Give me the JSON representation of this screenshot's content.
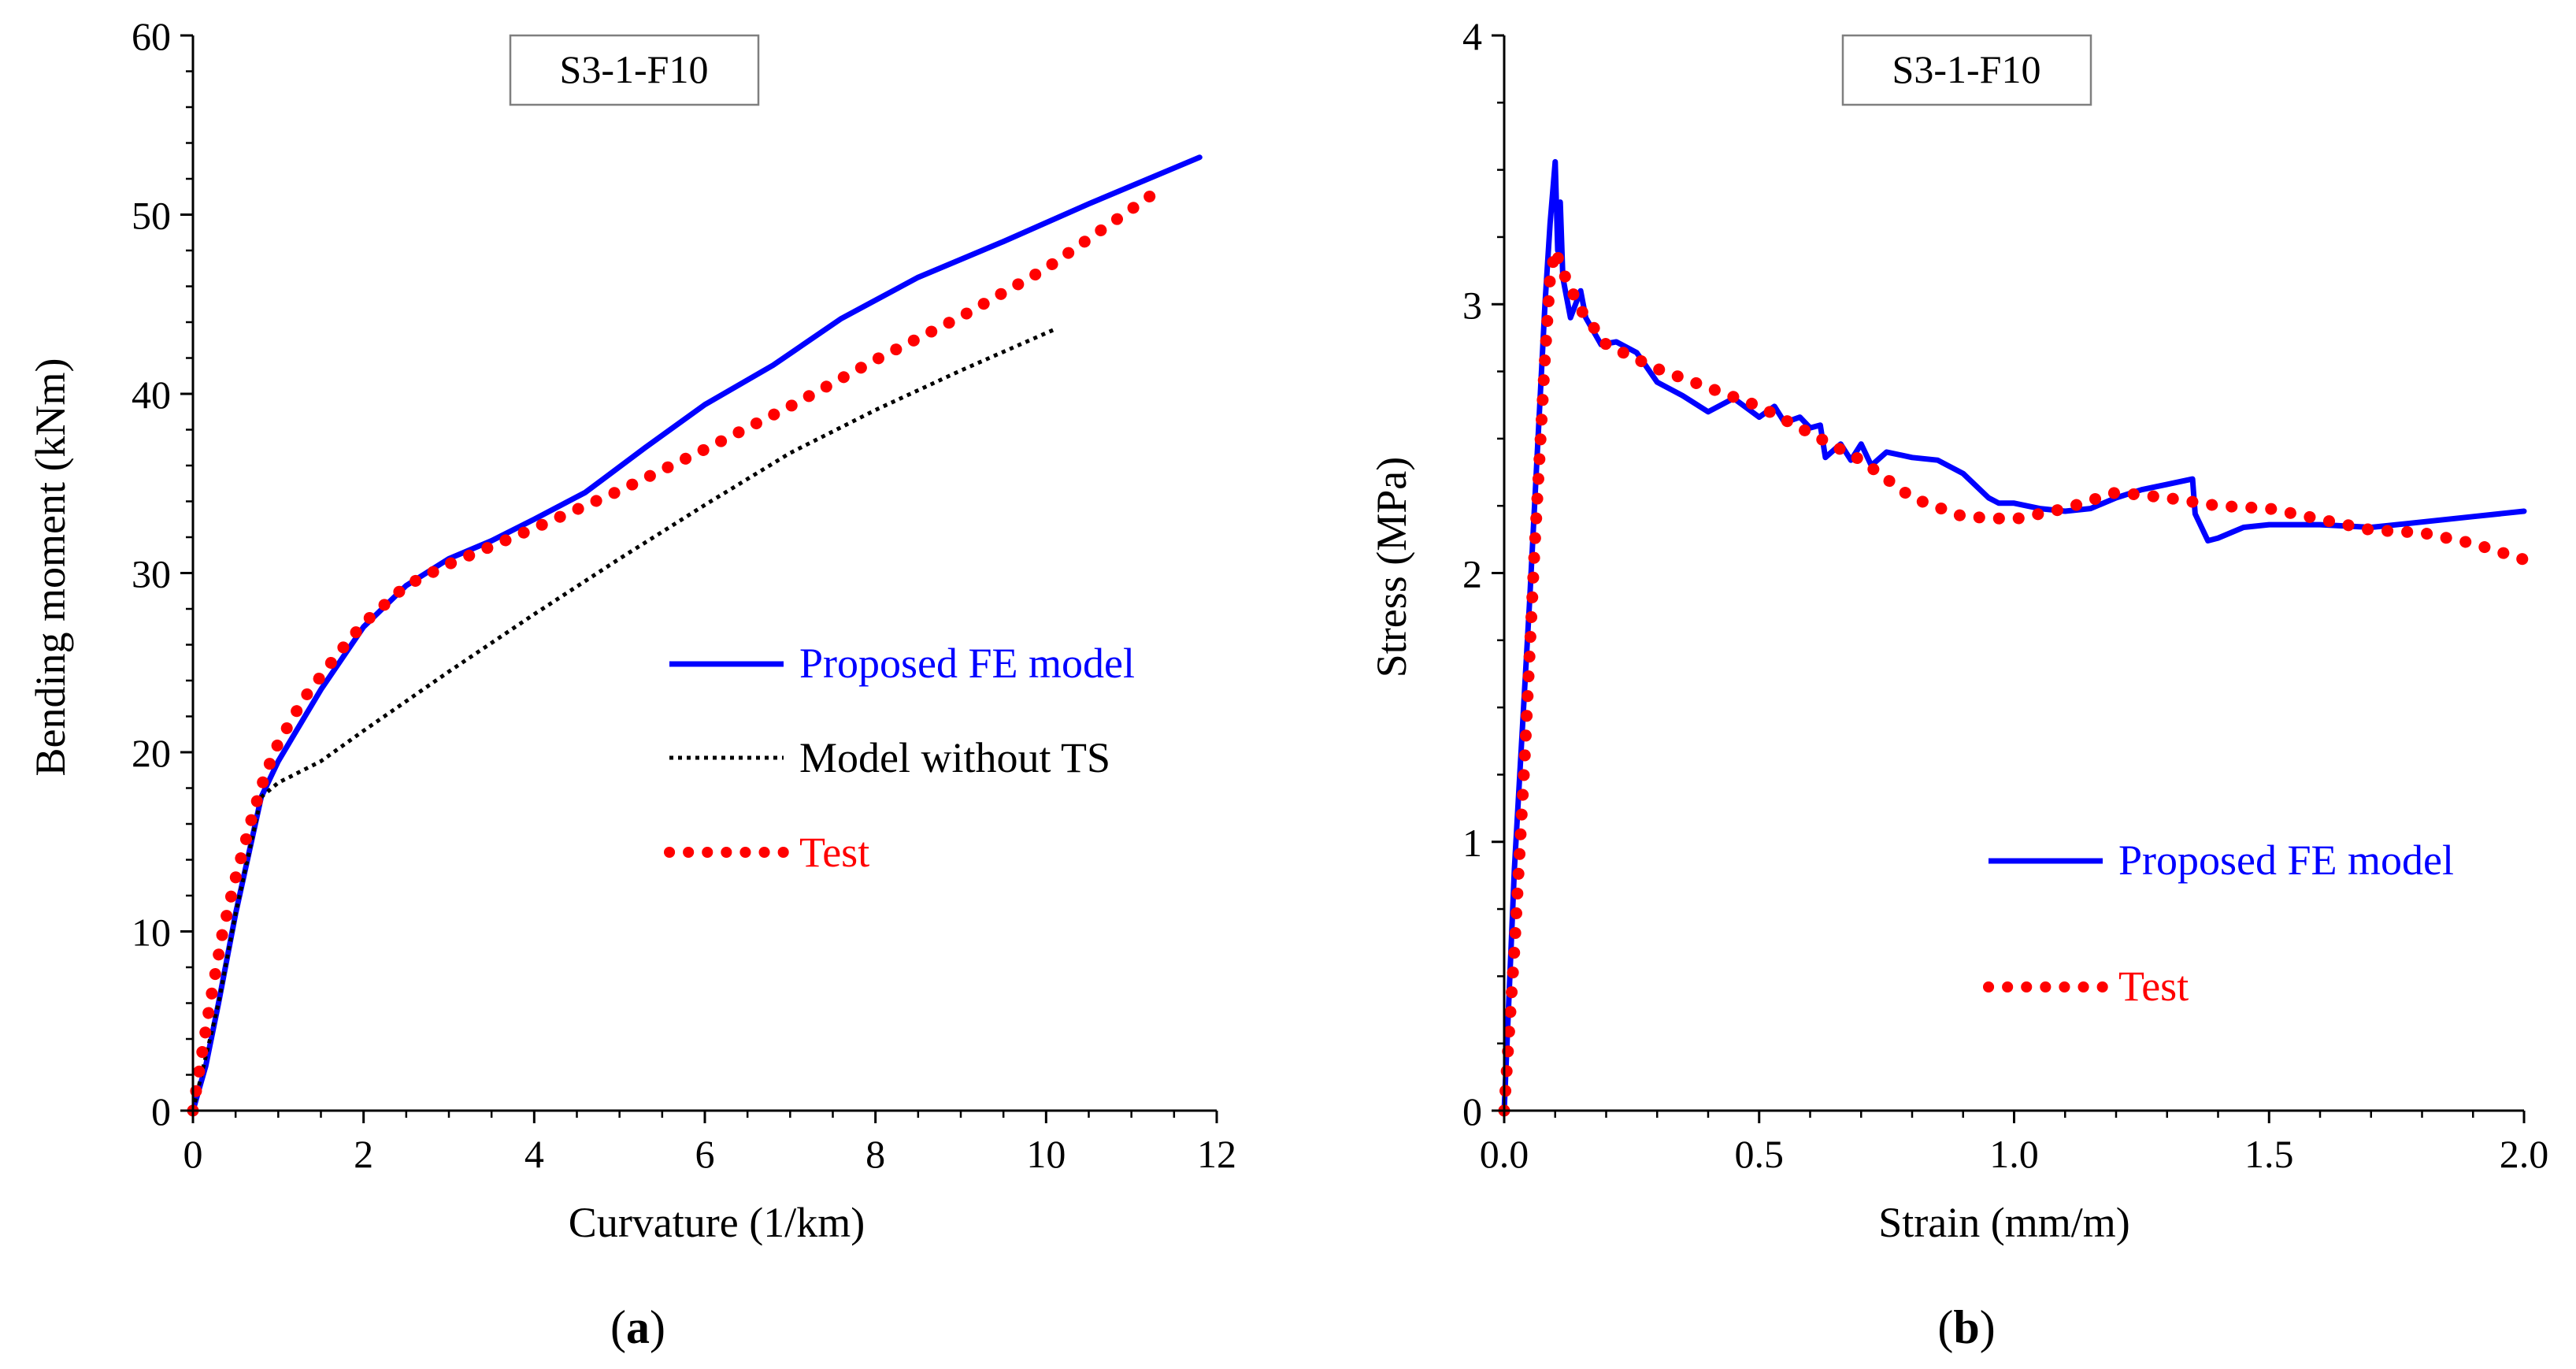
{
  "figure": {
    "panel_labels": [
      {
        "open": "(",
        "letter": "a",
        "close": ")"
      },
      {
        "open": "(",
        "letter": "b",
        "close": ")"
      }
    ]
  },
  "chart_data": [
    {
      "type": "line",
      "panel": "a",
      "title": "S3-1-F10",
      "xlabel": "Curvature (1/km)",
      "ylabel": "Bending moment (kNm)",
      "xlim": [
        0,
        12
      ],
      "ylim": [
        0,
        60
      ],
      "xticks": [
        0,
        2,
        4,
        6,
        8,
        10,
        12
      ],
      "xtick_labels": [
        "0",
        "2",
        "4",
        "6",
        "8",
        "10",
        "12"
      ],
      "yticks": [
        0,
        10,
        20,
        30,
        40,
        50,
        60
      ],
      "ytick_labels": [
        "0",
        "10",
        "20",
        "30",
        "40",
        "50",
        "60"
      ],
      "grid": false,
      "legend_position": "right-middle",
      "series": [
        {
          "name": "Proposed FE model",
          "color": "#0000ff",
          "style": "solid",
          "x": [
            0,
            0.15,
            0.3,
            0.5,
            0.8,
            1.0,
            1.5,
            2.0,
            2.5,
            3.0,
            3.5,
            4.0,
            4.6,
            5.3,
            6.0,
            6.8,
            7.6,
            8.5,
            9.5,
            10.5,
            11.8
          ],
          "y": [
            0,
            2.5,
            6,
            11,
            17.5,
            19.5,
            23.5,
            27,
            29.3,
            30.8,
            31.8,
            33,
            34.5,
            37,
            39.4,
            41.6,
            44.2,
            46.5,
            48.5,
            50.6,
            53.2
          ]
        },
        {
          "name": "Model without TS",
          "color": "#000000",
          "style": "dotted",
          "x": [
            0,
            0.3,
            0.5,
            0.8,
            1.0,
            1.5,
            2.0,
            3.0,
            4.0,
            5.0,
            6.0,
            7.0,
            8.0,
            9.0,
            10.1
          ],
          "y": [
            0,
            6,
            11,
            17.5,
            18.3,
            19.5,
            21.2,
            24.5,
            27.7,
            30.8,
            33.8,
            36.7,
            39.1,
            41.3,
            43.6
          ]
        },
        {
          "name": "Test",
          "color": "#ff0000",
          "style": "dotted-thick",
          "x": [
            0,
            0.1,
            0.2,
            0.35,
            0.5,
            0.7,
            0.85,
            1.0,
            1.3,
            1.7,
            2.0,
            2.5,
            3.0,
            3.5,
            4.0,
            5.0,
            6.0,
            7.0,
            8.0,
            9.0,
            10.0,
            11.3
          ],
          "y": [
            0,
            3,
            6,
            10,
            13,
            16.5,
            18.8,
            20.5,
            23,
            25.5,
            27.2,
            29.3,
            30.5,
            31.5,
            32.5,
            34.6,
            36.9,
            39.3,
            41.9,
            44.3,
            47,
            51.3
          ]
        }
      ]
    },
    {
      "type": "line",
      "panel": "b",
      "title": "S3-1-F10",
      "xlabel": "Strain (mm/m)",
      "ylabel": "Stress (MPa)",
      "xlim": [
        0,
        2.0
      ],
      "ylim": [
        0,
        4
      ],
      "xticks": [
        0,
        0.5,
        1.0,
        1.5,
        2.0
      ],
      "xtick_labels": [
        "0.0",
        "0.5",
        "1.0",
        "1.5",
        "2.0"
      ],
      "yticks": [
        0,
        1,
        2,
        3,
        4
      ],
      "ytick_labels": [
        "0",
        "1",
        "2",
        "3",
        "4"
      ],
      "grid": false,
      "legend_position": "right-bottom",
      "series": [
        {
          "name": "Proposed FE model",
          "color": "#0000ff",
          "style": "solid",
          "x": [
            0,
            0.02,
            0.05,
            0.08,
            0.09,
            0.1,
            0.105,
            0.11,
            0.115,
            0.12,
            0.13,
            0.15,
            0.16,
            0.19,
            0.22,
            0.26,
            0.3,
            0.35,
            0.4,
            0.45,
            0.5,
            0.53,
            0.55,
            0.58,
            0.6,
            0.62,
            0.63,
            0.66,
            0.68,
            0.7,
            0.72,
            0.75,
            0.8,
            0.85,
            0.9,
            0.95,
            0.97,
            1.0,
            1.05,
            1.1,
            1.15,
            1.2,
            1.25,
            1.3,
            1.35,
            1.355,
            1.38,
            1.4,
            1.45,
            1.5,
            1.6,
            1.7,
            1.8,
            1.9,
            2.0
          ],
          "y": [
            0,
            0.9,
            1.9,
            3.0,
            3.3,
            3.53,
            3.2,
            3.38,
            3.1,
            3.05,
            2.95,
            3.05,
            2.95,
            2.85,
            2.86,
            2.82,
            2.71,
            2.66,
            2.6,
            2.65,
            2.58,
            2.62,
            2.56,
            2.58,
            2.54,
            2.55,
            2.43,
            2.48,
            2.42,
            2.48,
            2.4,
            2.45,
            2.43,
            2.42,
            2.37,
            2.28,
            2.26,
            2.26,
            2.24,
            2.23,
            2.24,
            2.28,
            2.31,
            2.33,
            2.35,
            2.22,
            2.12,
            2.13,
            2.17,
            2.18,
            2.18,
            2.17,
            2.19,
            2.21,
            2.23
          ],
          "x_": null
        },
        {
          "name": "Test",
          "color": "#ff0000",
          "style": "dotted-thick",
          "x": [
            0,
            0.02,
            0.04,
            0.06,
            0.08,
            0.09,
            0.1,
            0.12,
            0.15,
            0.2,
            0.3,
            0.4,
            0.5,
            0.6,
            0.7,
            0.8,
            0.9,
            1.0,
            1.1,
            1.2,
            1.3,
            1.4,
            1.5,
            1.6,
            1.7,
            1.8,
            1.9,
            2.0
          ],
          "y": [
            0,
            0.6,
            1.3,
            2.1,
            2.8,
            3.1,
            3.2,
            3.1,
            2.98,
            2.85,
            2.76,
            2.69,
            2.62,
            2.52,
            2.42,
            2.28,
            2.21,
            2.2,
            2.24,
            2.3,
            2.28,
            2.25,
            2.24,
            2.2,
            2.16,
            2.15,
            2.11,
            2.05
          ]
        }
      ]
    }
  ]
}
